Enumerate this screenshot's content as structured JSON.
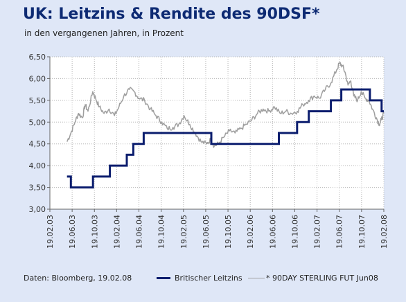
{
  "header": {
    "title": "UK: Leitzins & Rendite des 90DSF*",
    "subtitle": "in den vergangenen Jahren, in Prozent"
  },
  "footer": {
    "source": "Daten: Bloomberg, 19.02.08"
  },
  "colors": {
    "background": "#dfe7f7",
    "plot_background": "#ffffff",
    "title": "#0d2a73",
    "leitzins": "#0b1d6e",
    "future": "#9e9e9e",
    "grid": "#b5b5b5"
  },
  "chart_data": {
    "type": "line",
    "title": "UK: Leitzins & Rendite des 90DSF*",
    "subtitle": "in den vergangenen Jahren, in Prozent",
    "ylim": [
      3.0,
      6.5
    ],
    "xlim": [
      "2003-03-19",
      "2008-02-19"
    ],
    "y_ticks": [
      "3,00",
      "3,50",
      "4,00",
      "4,50",
      "5,00",
      "5,50",
      "6,00",
      "6,50"
    ],
    "x_ticks": [
      "19.02.03",
      "19.06.03",
      "19.10.03",
      "19.02.04",
      "19.06.04",
      "19.10.04",
      "19.02.05",
      "19.06.05",
      "19.10.05",
      "19.02.06",
      "19.06.06",
      "19.10.06",
      "19.02.07",
      "19.06.07",
      "19.10.07",
      "19.02.08"
    ],
    "grid": true,
    "legend_position": "bottom",
    "series": [
      {
        "name": "Britischer Leitzins",
        "style": "step",
        "color": "#0b1d6e",
        "points": [
          [
            "2003-06-19",
            3.75
          ],
          [
            "2003-07-10",
            3.5
          ],
          [
            "2003-11-06",
            3.75
          ],
          [
            "2004-02-05",
            4.0
          ],
          [
            "2004-05-06",
            4.25
          ],
          [
            "2004-06-10",
            4.5
          ],
          [
            "2004-08-05",
            4.75
          ],
          [
            "2005-08-04",
            4.5
          ],
          [
            "2006-08-03",
            4.75
          ],
          [
            "2006-11-09",
            5.0
          ],
          [
            "2007-01-11",
            5.25
          ],
          [
            "2007-05-10",
            5.5
          ],
          [
            "2007-07-05",
            5.75
          ],
          [
            "2007-12-06",
            5.5
          ],
          [
            "2008-02-07",
            5.25
          ],
          [
            "2008-02-19",
            5.25
          ]
        ]
      },
      {
        "name": "* 90DAY STERLING FUT Jun08",
        "style": "line",
        "color": "#9e9e9e",
        "points": [
          [
            "2003-06-19",
            4.55
          ],
          [
            "2003-07-10",
            4.75
          ],
          [
            "2003-08-01",
            5.0
          ],
          [
            "2003-08-20",
            5.2
          ],
          [
            "2003-09-10",
            5.1
          ],
          [
            "2003-09-25",
            5.4
          ],
          [
            "2003-10-10",
            5.25
          ],
          [
            "2003-11-05",
            5.7
          ],
          [
            "2003-11-20",
            5.55
          ],
          [
            "2003-12-10",
            5.35
          ],
          [
            "2004-01-05",
            5.2
          ],
          [
            "2004-02-01",
            5.3
          ],
          [
            "2004-03-01",
            5.15
          ],
          [
            "2004-03-25",
            5.35
          ],
          [
            "2004-04-20",
            5.6
          ],
          [
            "2004-05-20",
            5.75
          ],
          [
            "2004-06-15",
            5.7
          ],
          [
            "2004-07-10",
            5.55
          ],
          [
            "2004-08-10",
            5.5
          ],
          [
            "2004-09-10",
            5.3
          ],
          [
            "2004-10-10",
            5.15
          ],
          [
            "2004-11-10",
            5.0
          ],
          [
            "2004-12-10",
            4.85
          ],
          [
            "2005-01-10",
            4.88
          ],
          [
            "2005-02-10",
            4.95
          ],
          [
            "2005-03-10",
            5.15
          ],
          [
            "2005-04-10",
            4.95
          ],
          [
            "2005-05-10",
            4.75
          ],
          [
            "2005-06-10",
            4.55
          ],
          [
            "2005-07-10",
            4.5
          ],
          [
            "2005-08-01",
            4.6
          ],
          [
            "2005-08-20",
            4.45
          ],
          [
            "2005-09-10",
            4.5
          ],
          [
            "2005-10-10",
            4.65
          ],
          [
            "2005-11-10",
            4.8
          ],
          [
            "2005-12-10",
            4.75
          ],
          [
            "2006-01-10",
            4.85
          ],
          [
            "2006-02-10",
            4.95
          ],
          [
            "2006-03-10",
            5.05
          ],
          [
            "2006-04-10",
            5.2
          ],
          [
            "2006-05-10",
            5.3
          ],
          [
            "2006-06-10",
            5.25
          ],
          [
            "2006-07-10",
            5.35
          ],
          [
            "2006-08-10",
            5.2
          ],
          [
            "2006-09-10",
            5.25
          ],
          [
            "2006-10-10",
            5.2
          ],
          [
            "2006-11-10",
            5.25
          ],
          [
            "2006-12-10",
            5.4
          ],
          [
            "2007-01-10",
            5.5
          ],
          [
            "2007-02-10",
            5.6
          ],
          [
            "2007-03-10",
            5.55
          ],
          [
            "2007-04-10",
            5.75
          ],
          [
            "2007-05-10",
            5.9
          ],
          [
            "2007-06-10",
            6.2
          ],
          [
            "2007-06-25",
            6.35
          ],
          [
            "2007-07-10",
            6.3
          ],
          [
            "2007-07-25",
            6.15
          ],
          [
            "2007-08-10",
            5.85
          ],
          [
            "2007-08-25",
            5.95
          ],
          [
            "2007-09-10",
            5.6
          ],
          [
            "2007-10-01",
            5.5
          ],
          [
            "2007-10-20",
            5.7
          ],
          [
            "2007-11-10",
            5.55
          ],
          [
            "2007-12-01",
            5.5
          ],
          [
            "2007-12-20",
            5.3
          ],
          [
            "2008-01-10",
            5.1
          ],
          [
            "2008-01-25",
            4.95
          ],
          [
            "2008-02-05",
            5.05
          ],
          [
            "2008-02-19",
            5.2
          ]
        ]
      }
    ]
  },
  "legend": {
    "leitzins": "Britischer Leitzins",
    "future": "* 90DAY STERLING FUT Jun08"
  }
}
